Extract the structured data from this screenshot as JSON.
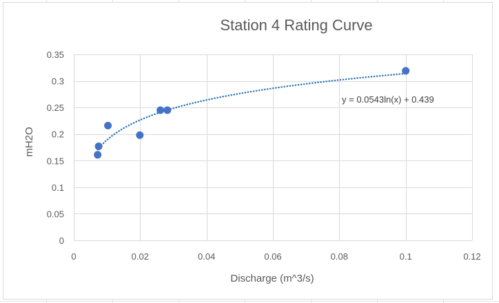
{
  "chart_data": {
    "type": "scatter",
    "title": "Station 4 Rating Curve",
    "xlabel": "Discharge (m^3/s)",
    "ylabel": "mH2O",
    "xlim": [
      0,
      0.12
    ],
    "ylim": [
      0,
      0.35
    ],
    "x_ticks": [
      "0",
      "0.02",
      "0.04",
      "0.06",
      "0.08",
      "0.1",
      "0.12"
    ],
    "x_tick_values": [
      0,
      0.02,
      0.04,
      0.06,
      0.08,
      0.1,
      0.12
    ],
    "y_ticks": [
      "0",
      "0.05",
      "0.1",
      "0.15",
      "0.2",
      "0.25",
      "0.3",
      "0.35"
    ],
    "y_tick_values": [
      0,
      0.05,
      0.1,
      0.15,
      0.2,
      0.25,
      0.3,
      0.35
    ],
    "grid": true,
    "legend": "none",
    "series": [
      {
        "points": [
          {
            "x": 0.0072,
            "y": 0.161
          },
          {
            "x": 0.0075,
            "y": 0.177
          },
          {
            "x": 0.0103,
            "y": 0.216
          },
          {
            "x": 0.0199,
            "y": 0.198
          },
          {
            "x": 0.0261,
            "y": 0.245
          },
          {
            "x": 0.0282,
            "y": 0.245
          },
          {
            "x": 0.1,
            "y": 0.319
          }
        ],
        "color": "#4472c4"
      }
    ],
    "trendline": {
      "type": "logarithmic",
      "a": 0.0543,
      "b": 0.439,
      "x_range": [
        0.0072,
        0.1
      ],
      "equation": "y = 0.0543ln(x) + 0.439",
      "color": "#2e75b6"
    }
  },
  "colors": {
    "marker": "#4472c4",
    "gridline": "#d9d9d9",
    "text": "#595959",
    "title": "#595959"
  }
}
